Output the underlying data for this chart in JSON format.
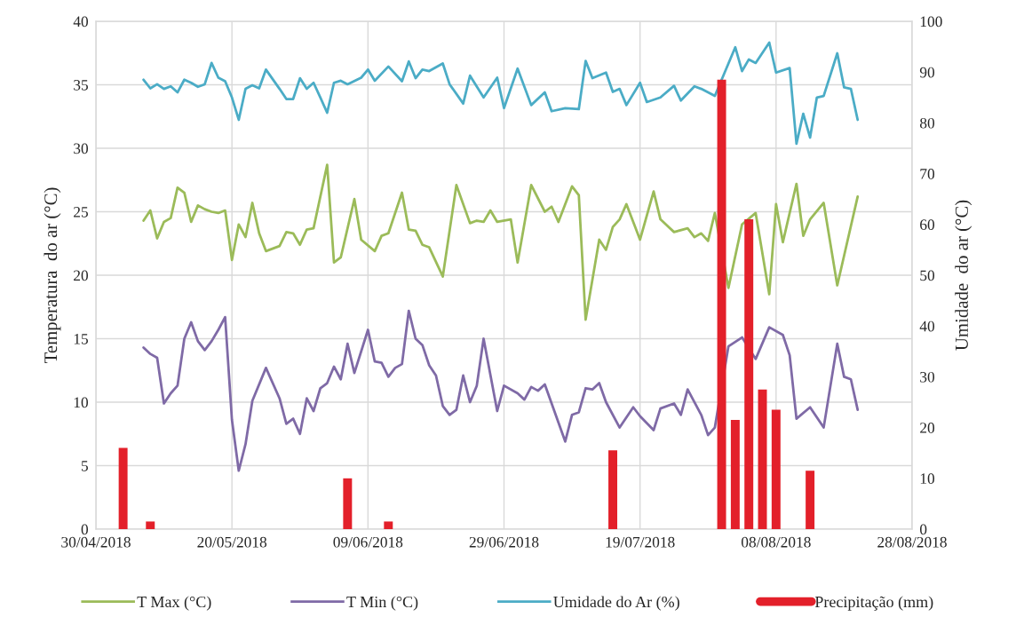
{
  "chart_data": {
    "type": "line",
    "ylabel": "Temperatura  do ar (°C)",
    "y2label": "Umidade  do ar (°C)",
    "xlim": [
      "2018-04-30",
      "2018-08-28"
    ],
    "xticks": [
      {
        "value": "2018-04-30",
        "label": "30/04/2018"
      },
      {
        "value": "2018-05-20",
        "label": "20/05/2018"
      },
      {
        "value": "2018-06-09",
        "label": "09/06/2018"
      },
      {
        "value": "2018-06-29",
        "label": "29/06/2018"
      },
      {
        "value": "2018-07-19",
        "label": "19/07/2018"
      },
      {
        "value": "2018-08-08",
        "label": "08/08/2018"
      },
      {
        "value": "2018-08-28",
        "label": "28/08/2018"
      }
    ],
    "ylim": [
      0,
      40
    ],
    "yticks": [
      0,
      5,
      10,
      15,
      20,
      25,
      30,
      35,
      40
    ],
    "y2lim": [
      0,
      100
    ],
    "y2ticks": [
      0,
      10,
      20,
      30,
      40,
      50,
      60,
      70,
      80,
      90,
      100
    ],
    "grid": true,
    "legend": "bottom",
    "series": [
      {
        "name": "T Max (°C)",
        "color": "#9bbb59",
        "x": [
          "2018-05-07",
          "2018-05-08",
          "2018-05-09",
          "2018-05-10",
          "2018-05-11",
          "2018-05-12",
          "2018-05-13",
          "2018-05-14",
          "2018-05-15",
          "2018-05-16",
          "2018-05-17",
          "2018-05-18",
          "2018-05-19",
          "2018-05-20",
          "2018-05-21",
          "2018-05-22",
          "2018-05-23",
          "2018-05-24",
          "2018-05-25",
          "2018-05-27",
          "2018-05-28",
          "2018-05-29",
          "2018-05-30",
          "2018-05-31",
          "2018-06-01",
          "2018-06-03",
          "2018-06-04",
          "2018-06-05",
          "2018-06-07",
          "2018-06-08",
          "2018-06-10",
          "2018-06-11",
          "2018-06-12",
          "2018-06-14",
          "2018-06-15",
          "2018-06-16",
          "2018-06-17",
          "2018-06-18",
          "2018-06-20",
          "2018-06-22",
          "2018-06-24",
          "2018-06-25",
          "2018-06-26",
          "2018-06-27",
          "2018-06-28",
          "2018-06-30",
          "2018-07-01",
          "2018-07-03",
          "2018-07-05",
          "2018-07-06",
          "2018-07-07",
          "2018-07-09",
          "2018-07-10",
          "2018-07-11",
          "2018-07-13",
          "2018-07-14",
          "2018-07-15",
          "2018-07-16",
          "2018-07-17",
          "2018-07-19",
          "2018-07-21",
          "2018-07-22",
          "2018-07-24",
          "2018-07-26",
          "2018-07-27",
          "2018-07-28",
          "2018-07-29",
          "2018-07-30",
          "2018-08-01",
          "2018-08-03",
          "2018-08-05",
          "2018-08-07",
          "2018-08-08",
          "2018-08-09",
          "2018-08-11",
          "2018-08-12",
          "2018-08-13",
          "2018-08-15",
          "2018-08-17",
          "2018-08-20"
        ],
        "values": [
          24.3,
          25.1,
          22.9,
          24.2,
          24.5,
          26.9,
          26.5,
          24.2,
          25.5,
          25.2,
          25.0,
          24.9,
          25.1,
          21.2,
          24.0,
          23.0,
          25.7,
          23.3,
          21.9,
          22.3,
          23.4,
          23.3,
          22.4,
          23.6,
          23.7,
          28.7,
          21.0,
          21.4,
          26.0,
          22.8,
          21.9,
          23.1,
          23.3,
          26.5,
          23.6,
          23.5,
          22.4,
          22.2,
          19.9,
          27.1,
          24.1,
          24.3,
          24.2,
          25.1,
          24.2,
          24.4,
          21.0,
          27.1,
          25.0,
          25.4,
          24.2,
          27.0,
          26.3,
          16.5,
          22.8,
          22.0,
          23.8,
          24.4,
          25.6,
          22.8,
          26.6,
          24.4,
          23.4,
          23.7,
          23.0,
          23.3,
          22.7,
          24.9,
          19.0,
          24.0,
          24.9,
          18.5,
          25.6,
          22.6,
          27.2,
          23.1,
          24.4,
          25.7,
          19.2,
          26.2
        ]
      },
      {
        "name": "T Min (°C)",
        "color": "#7f6aa6",
        "x": [
          "2018-05-07",
          "2018-05-08",
          "2018-05-09",
          "2018-05-10",
          "2018-05-11",
          "2018-05-12",
          "2018-05-13",
          "2018-05-14",
          "2018-05-15",
          "2018-05-16",
          "2018-05-17",
          "2018-05-18",
          "2018-05-19",
          "2018-05-20",
          "2018-05-21",
          "2018-05-22",
          "2018-05-23",
          "2018-05-25",
          "2018-05-27",
          "2018-05-28",
          "2018-05-29",
          "2018-05-30",
          "2018-05-31",
          "2018-06-01",
          "2018-06-02",
          "2018-06-03",
          "2018-06-04",
          "2018-06-05",
          "2018-06-06",
          "2018-06-07",
          "2018-06-09",
          "2018-06-10",
          "2018-06-11",
          "2018-06-12",
          "2018-06-13",
          "2018-06-14",
          "2018-06-15",
          "2018-06-16",
          "2018-06-17",
          "2018-06-18",
          "2018-06-19",
          "2018-06-20",
          "2018-06-21",
          "2018-06-22",
          "2018-06-23",
          "2018-06-24",
          "2018-06-25",
          "2018-06-26",
          "2018-06-28",
          "2018-06-29",
          "2018-07-01",
          "2018-07-02",
          "2018-07-03",
          "2018-07-04",
          "2018-07-05",
          "2018-07-08",
          "2018-07-09",
          "2018-07-10",
          "2018-07-11",
          "2018-07-12",
          "2018-07-13",
          "2018-07-14",
          "2018-07-16",
          "2018-07-18",
          "2018-07-19",
          "2018-07-21",
          "2018-07-22",
          "2018-07-24",
          "2018-07-25",
          "2018-07-26",
          "2018-07-28",
          "2018-07-29",
          "2018-07-30",
          "2018-08-01",
          "2018-08-03",
          "2018-08-05",
          "2018-08-07",
          "2018-08-09",
          "2018-08-10",
          "2018-08-11",
          "2018-08-13",
          "2018-08-15",
          "2018-08-17",
          "2018-08-18",
          "2018-08-19",
          "2018-08-20"
        ],
        "values": [
          14.3,
          13.8,
          13.5,
          9.9,
          10.7,
          11.3,
          15.0,
          16.3,
          14.8,
          14.1,
          14.8,
          15.7,
          16.7,
          8.6,
          4.6,
          6.7,
          10.1,
          12.7,
          10.3,
          8.3,
          8.7,
          7.5,
          10.3,
          9.3,
          11.1,
          11.5,
          12.8,
          11.8,
          14.6,
          12.3,
          15.7,
          13.2,
          13.1,
          12.0,
          12.7,
          13.0,
          17.2,
          15.0,
          14.5,
          12.9,
          12.1,
          9.7,
          9.0,
          9.4,
          12.1,
          10.0,
          11.3,
          15.0,
          9.3,
          11.3,
          10.7,
          10.2,
          11.2,
          10.9,
          11.4,
          6.9,
          9.0,
          9.2,
          11.1,
          11.0,
          11.5,
          10.0,
          8.0,
          9.6,
          8.9,
          7.8,
          9.5,
          9.9,
          9.0,
          11.0,
          9.0,
          7.4,
          8.0,
          14.4,
          15.1,
          13.4,
          15.9,
          15.3,
          13.7,
          8.7,
          9.6,
          8.0,
          14.6,
          12.0,
          11.8,
          9.4
        ]
      },
      {
        "name": "Umidade do Ar (%)",
        "axis": "y2",
        "color": "#4bacc6",
        "x": [
          "2018-05-07",
          "2018-05-08",
          "2018-05-09",
          "2018-05-10",
          "2018-05-11",
          "2018-05-12",
          "2018-05-13",
          "2018-05-14",
          "2018-05-15",
          "2018-05-16",
          "2018-05-17",
          "2018-05-18",
          "2018-05-19",
          "2018-05-20",
          "2018-05-21",
          "2018-05-22",
          "2018-05-23",
          "2018-05-24",
          "2018-05-25",
          "2018-05-27",
          "2018-05-28",
          "2018-05-29",
          "2018-05-30",
          "2018-05-31",
          "2018-06-01",
          "2018-06-02",
          "2018-06-03",
          "2018-06-04",
          "2018-06-05",
          "2018-06-06",
          "2018-06-08",
          "2018-06-09",
          "2018-06-10",
          "2018-06-12",
          "2018-06-14",
          "2018-06-15",
          "2018-06-16",
          "2018-06-17",
          "2018-06-18",
          "2018-06-20",
          "2018-06-21",
          "2018-06-23",
          "2018-06-24",
          "2018-06-26",
          "2018-06-28",
          "2018-06-29",
          "2018-07-01",
          "2018-07-03",
          "2018-07-05",
          "2018-07-06",
          "2018-07-08",
          "2018-07-10",
          "2018-07-11",
          "2018-07-12",
          "2018-07-14",
          "2018-07-15",
          "2018-07-16",
          "2018-07-17",
          "2018-07-19",
          "2018-07-20",
          "2018-07-22",
          "2018-07-24",
          "2018-07-25",
          "2018-07-27",
          "2018-07-28",
          "2018-07-30",
          "2018-08-02",
          "2018-08-03",
          "2018-08-04",
          "2018-08-05",
          "2018-08-07",
          "2018-08-08",
          "2018-08-10",
          "2018-08-11",
          "2018-08-12",
          "2018-08-13",
          "2018-08-14",
          "2018-08-15",
          "2018-08-17",
          "2018-08-18",
          "2018-08-19",
          "2018-08-20"
        ],
        "values": [
          88.5,
          86.8,
          87.6,
          86.7,
          87.2,
          86.0,
          88.5,
          87.9,
          87.1,
          87.6,
          91.8,
          88.9,
          88.2,
          85.0,
          80.6,
          86.7,
          87.4,
          86.8,
          90.5,
          86.7,
          84.7,
          84.7,
          88.8,
          86.7,
          87.9,
          85.0,
          82.0,
          87.9,
          88.3,
          87.6,
          88.9,
          90.5,
          88.3,
          91.1,
          88.2,
          92.1,
          88.8,
          90.5,
          90.2,
          91.7,
          87.6,
          83.8,
          89.3,
          85.0,
          88.9,
          82.9,
          90.7,
          83.5,
          86.0,
          82.3,
          82.9,
          82.7,
          92.2,
          88.8,
          89.9,
          86.1,
          86.7,
          83.5,
          87.9,
          84.1,
          85.0,
          87.3,
          84.4,
          87.2,
          86.7,
          85.3,
          94.9,
          90.2,
          92.5,
          91.8,
          95.8,
          89.9,
          90.8,
          75.9,
          81.8,
          77.1,
          85.0,
          85.3,
          93.7,
          87.0,
          86.7,
          80.6
        ]
      },
      {
        "name": "Precipitação (mm)",
        "type": "bar",
        "axis": "y2",
        "color": "#e3202a",
        "x": [
          "2018-05-04",
          "2018-05-08",
          "2018-06-06",
          "2018-06-12",
          "2018-07-15",
          "2018-07-31",
          "2018-08-02",
          "2018-08-04",
          "2018-08-06",
          "2018-08-08",
          "2018-08-13"
        ],
        "values": [
          16,
          1.5,
          10,
          1.5,
          15.5,
          88.5,
          21.5,
          61,
          27.5,
          23.5,
          11.5
        ]
      }
    ]
  }
}
